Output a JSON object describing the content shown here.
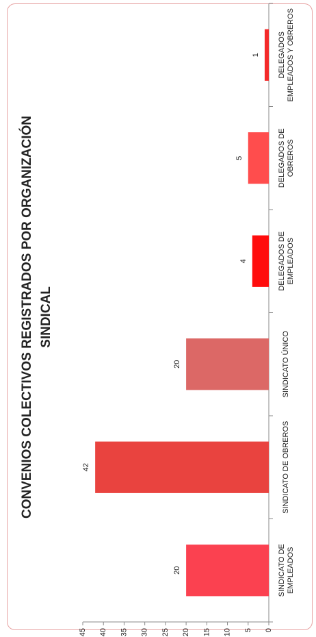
{
  "chart_data": {
    "type": "bar",
    "orientation": "rotated-90",
    "title_lines": [
      "CONVENIOS COLECTIVOS REGISTRADOS POR ORGANIZACIÓN",
      "SINDICAL"
    ],
    "categories": [
      [
        "SINDICATO DE",
        "EMPLEADOS"
      ],
      [
        "SINDICATO DE OBREROS"
      ],
      [
        "SINDICATO ÚNICO"
      ],
      [
        "DELEGADOS DE",
        "EMPLEADOS"
      ],
      [
        "DELEGADOS DE",
        "OBREROS"
      ],
      [
        "DELEGADOS",
        "EMPLEADOS Y OBREROS"
      ]
    ],
    "values": [
      20,
      42,
      20,
      4,
      5,
      1
    ],
    "data_labels": [
      "20",
      "42",
      "20",
      "4",
      "5",
      "1"
    ],
    "colors": [
      "#fb4150",
      "#e9433f",
      "#dc6866",
      "#ff0d0d",
      "#ff4d4d",
      "#f42a2a"
    ],
    "ylim": [
      0,
      45
    ],
    "yticks": [
      0,
      5,
      10,
      15,
      20,
      25,
      30,
      35,
      40,
      45
    ],
    "grid": false,
    "legend": "none"
  }
}
